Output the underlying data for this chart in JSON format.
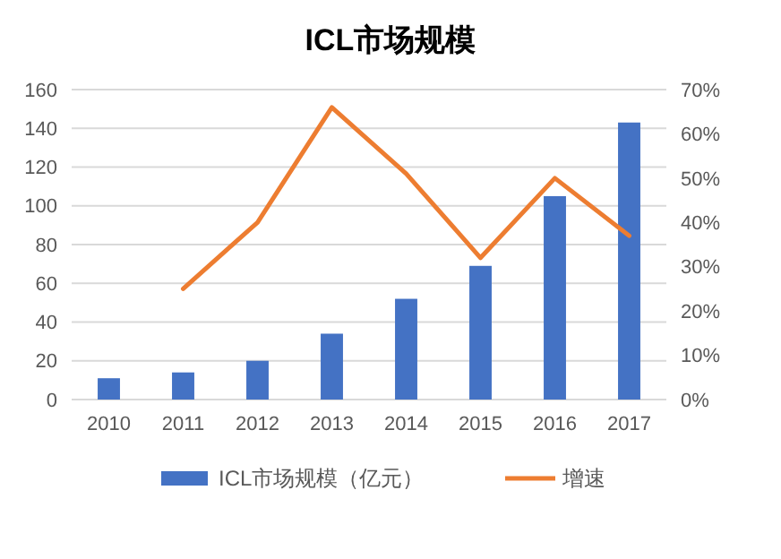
{
  "chart_data": {
    "type": "bar",
    "title": "ICL市场规模",
    "categories": [
      "2010",
      "2011",
      "2012",
      "2013",
      "2014",
      "2015",
      "2016",
      "2017"
    ],
    "series": [
      {
        "name": "ICL市场规模（亿元）",
        "color": "#4472c4",
        "values": [
          11,
          14,
          20,
          34,
          52,
          69,
          105,
          143
        ]
      },
      {
        "name": "增速",
        "color": "#ed7d31",
        "type": "line",
        "axis": "y2",
        "values": [
          null,
          25,
          40,
          66,
          51,
          32,
          50,
          37
        ]
      }
    ],
    "ylim": [
      0,
      160
    ],
    "yticks": [
      0,
      20,
      40,
      60,
      80,
      100,
      120,
      140,
      160
    ],
    "y2lim": [
      0,
      70
    ],
    "y2ticks": [
      {
        "value": 0,
        "label": "0%"
      },
      {
        "value": 10,
        "label": "10%"
      },
      {
        "value": 20,
        "label": "20%"
      },
      {
        "value": 30,
        "label": "30%"
      },
      {
        "value": 40,
        "label": "40%"
      },
      {
        "value": 50,
        "label": "50%"
      },
      {
        "value": 60,
        "label": "60%"
      },
      {
        "value": 70,
        "label": "70%"
      }
    ],
    "grid": "y",
    "legend": "bottom",
    "marker": "none",
    "line_style": "solid"
  }
}
